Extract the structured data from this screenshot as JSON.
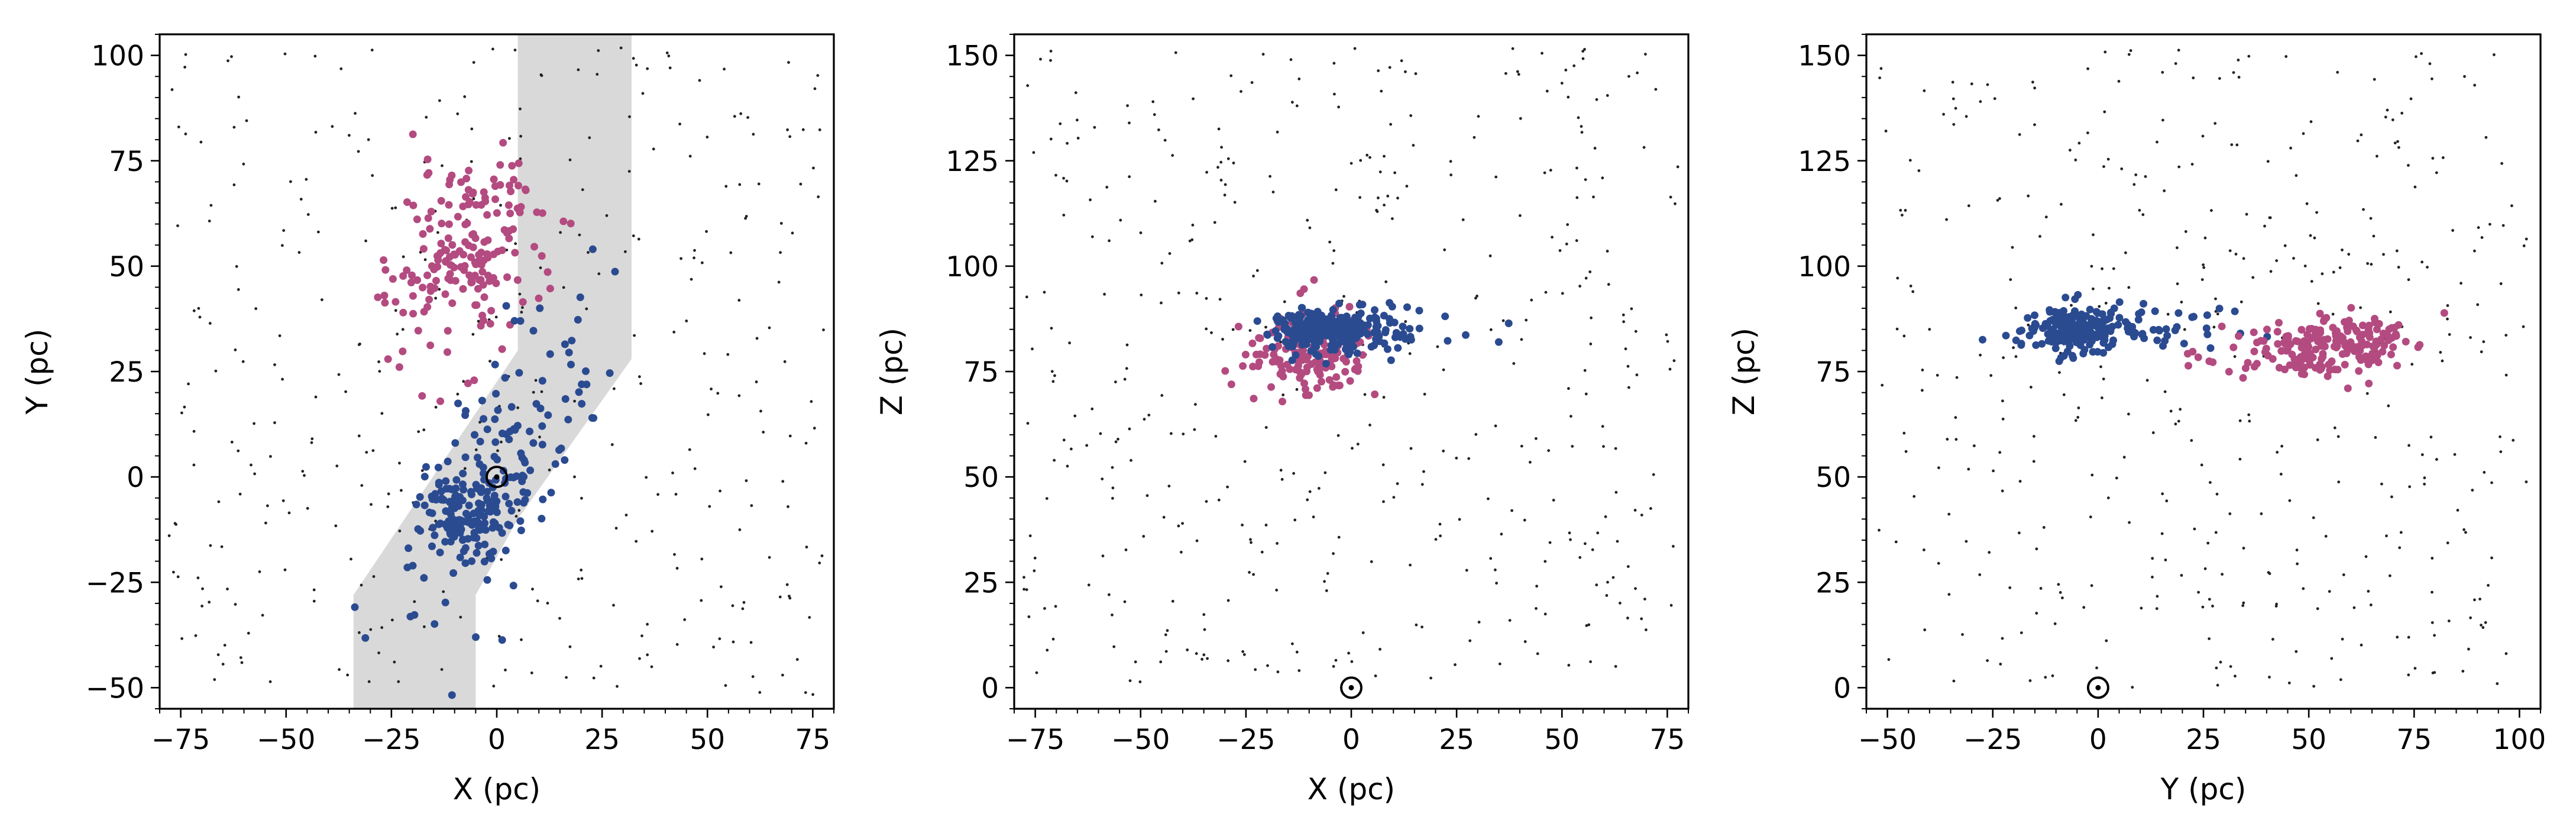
{
  "colors": {
    "field": "#222222",
    "group_blue": "#2b4b91",
    "group_magenta": "#b34b80",
    "band": "#d9d9d9",
    "sun_marker": "#000000"
  },
  "chart_data": [
    {
      "type": "scatter",
      "xlabel": "X (pc)",
      "ylabel": "Y (pc)",
      "xlim": [
        -80,
        80
      ],
      "ylim": [
        -55,
        105
      ],
      "xticks": [
        -75,
        -50,
        -25,
        0,
        25,
        50,
        75
      ],
      "yticks": [
        -50,
        -25,
        0,
        25,
        50,
        75,
        100
      ],
      "band_polygon": [
        [
          -34,
          -55
        ],
        [
          -34,
          -28
        ],
        [
          -5,
          -28
        ],
        [
          -5,
          -55
        ]
      ],
      "band_polygon_2": [
        [
          -34,
          -28
        ],
        [
          -5,
          -28
        ],
        [
          -5,
          -28
        ],
        [
          5,
          -10
        ],
        [
          32,
          28
        ],
        [
          32,
          105
        ],
        [
          5,
          105
        ],
        [
          5,
          30
        ],
        [
          -34,
          -28
        ]
      ],
      "sun": [
        0,
        0
      ],
      "series": [
        {
          "role": "field",
          "color": "#222222",
          "count": 380,
          "x_range": [
            -78,
            78
          ],
          "y_range": [
            -52,
            102
          ]
        },
        {
          "role": "group_magenta",
          "color": "#b34b80",
          "count": 190,
          "x_center": -8,
          "y_center": 52,
          "x_sd": 9,
          "y_sd": 11,
          "tilt": 0.35
        },
        {
          "role": "group_blue",
          "color": "#2b4b91",
          "count": 130,
          "x_center": -8,
          "y_center": -8,
          "x_sd": 5,
          "y_sd": 5,
          "tilt": 0
        },
        {
          "role": "group_blue",
          "color": "#2b4b91",
          "count": 140,
          "x_center": 0,
          "y_center": 0,
          "x_sd": 11,
          "y_sd": 15,
          "tilt": 0.9
        }
      ]
    },
    {
      "type": "scatter",
      "xlabel": "X (pc)",
      "ylabel": "Z (pc)",
      "xlim": [
        -80,
        80
      ],
      "ylim": [
        -5,
        155
      ],
      "xticks": [
        -75,
        -50,
        -25,
        0,
        25,
        50,
        75
      ],
      "yticks": [
        0,
        25,
        50,
        75,
        100,
        125,
        150
      ],
      "sun": [
        0,
        0
      ],
      "series": [
        {
          "role": "field",
          "color": "#222222",
          "count": 430,
          "x_range": [
            -78,
            78
          ],
          "y_range": [
            0,
            152
          ]
        },
        {
          "role": "group_magenta",
          "color": "#b34b80",
          "count": 170,
          "x_center": -10,
          "y_center": 80,
          "x_sd": 7,
          "y_sd": 5,
          "tilt": 0
        },
        {
          "role": "group_blue",
          "color": "#2b4b91",
          "count": 230,
          "x_center": -6,
          "y_center": 85,
          "x_sd": 7,
          "y_sd": 2.5,
          "tilt": 0
        },
        {
          "role": "group_blue",
          "color": "#2b4b91",
          "count": 60,
          "x_center": 5,
          "y_center": 84,
          "x_sd": 11,
          "y_sd": 3,
          "tilt": 0
        }
      ]
    },
    {
      "type": "scatter",
      "xlabel": "Y (pc)",
      "ylabel": "Z (pc)",
      "xlim": [
        -55,
        105
      ],
      "ylim": [
        -5,
        155
      ],
      "xticks": [
        -50,
        -25,
        0,
        25,
        50,
        75,
        100
      ],
      "yticks": [
        0,
        25,
        50,
        75,
        100,
        125,
        150
      ],
      "sun": [
        0,
        0
      ],
      "series": [
        {
          "role": "field",
          "color": "#222222",
          "count": 430,
          "x_range": [
            -52,
            102
          ],
          "y_range": [
            0,
            152
          ]
        },
        {
          "role": "group_blue",
          "color": "#2b4b91",
          "count": 200,
          "x_center": -6,
          "y_center": 85,
          "x_sd": 4,
          "y_sd": 2.5,
          "tilt": 0
        },
        {
          "role": "group_blue",
          "color": "#2b4b91",
          "count": 90,
          "x_center": 5,
          "y_center": 85,
          "x_sd": 14,
          "y_sd": 2.5,
          "tilt": 0
        },
        {
          "role": "group_magenta",
          "color": "#b34b80",
          "count": 200,
          "x_center": 55,
          "y_center": 81,
          "x_sd": 11,
          "y_sd": 3.5,
          "tilt": 0.08
        }
      ]
    }
  ]
}
